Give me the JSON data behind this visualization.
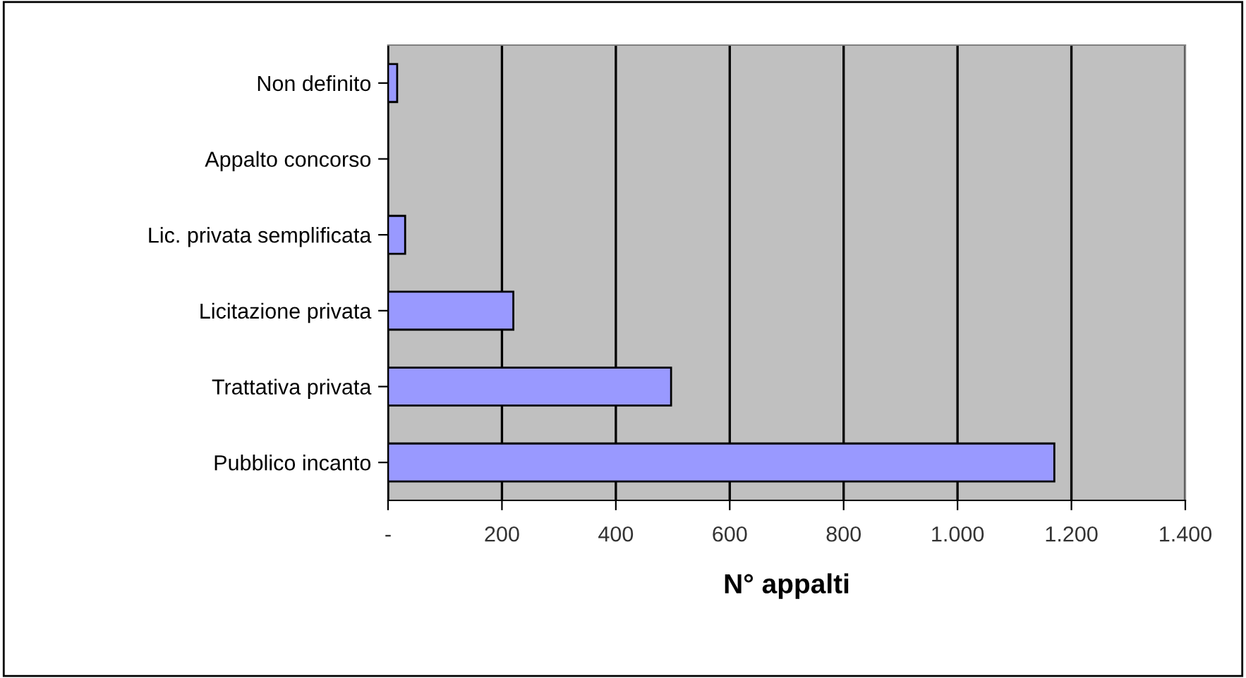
{
  "chart_data": {
    "type": "bar",
    "orientation": "horizontal",
    "xlabel": "N° appalti",
    "categories": [
      "Non definito",
      "Appalto concorso",
      "Lic. privata semplificata",
      "Licitazione privata",
      "Trattativa privata",
      "Pubblico incanto"
    ],
    "values": [
      16,
      0,
      30,
      220,
      497,
      1170
    ],
    "color": "#9999ff",
    "xlim": [
      0,
      1400
    ],
    "xticks": [
      {
        "value": 0,
        "label": "-"
      },
      200,
      400,
      600,
      800,
      {
        "value": 1000,
        "label": "1.000"
      },
      {
        "value": 1200,
        "label": "1.200"
      },
      {
        "value": 1400,
        "label": "1.400"
      }
    ],
    "grid": "x",
    "legend": false
  }
}
